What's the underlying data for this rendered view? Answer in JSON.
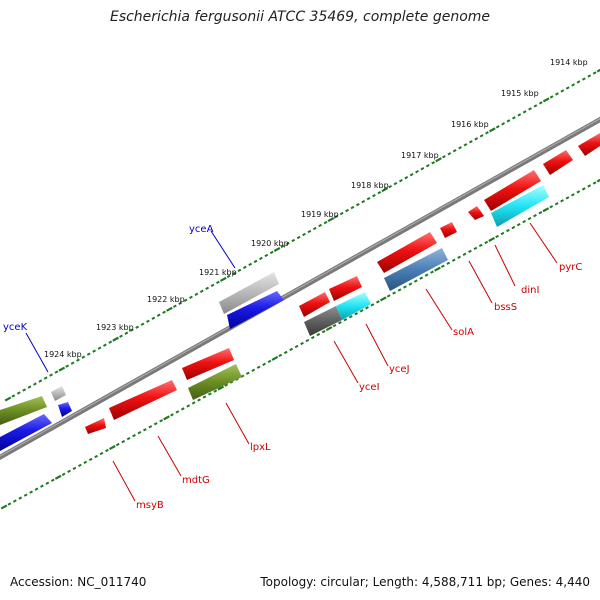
{
  "title": "Escherichia fergusonii ATCC 35469, complete genome",
  "accession": "Accession: NC_011740",
  "genome_info": "Topology: circular; Length: 4,588,711 bp; Genes: 4,440",
  "scale_labels": [
    "1914 kbp",
    "1915 kbp",
    "1916 kbp",
    "1917 kbp",
    "1918 kbp",
    "1919 kbp",
    "1920 kbp",
    "1921 kbp",
    "1922 kbp",
    "1923 kbp",
    "1924 kbp"
  ],
  "genes": {
    "yceA": "yceA",
    "yceK": "yceK",
    "pyrC": "pyrC",
    "dinI": "dinI",
    "bssS": "bssS",
    "solA": "solA",
    "yceJ": "yceJ",
    "yceI": "yceI",
    "lpxL": "lpxL",
    "mdtG": "mdtG",
    "msyB": "msyB"
  },
  "colors": {
    "red": "#ee1111",
    "blue": "#1a1ae6",
    "grey": "#b8b8b8",
    "darkgrey": "#606060",
    "olive": "#6b8e23",
    "cyan": "#22e4f4",
    "steelblue": "#4a7fb5",
    "tick": "#1e7a1e",
    "backbone": "#777777",
    "label_red": "#cc0000",
    "label_blue": "#0000cc"
  }
}
